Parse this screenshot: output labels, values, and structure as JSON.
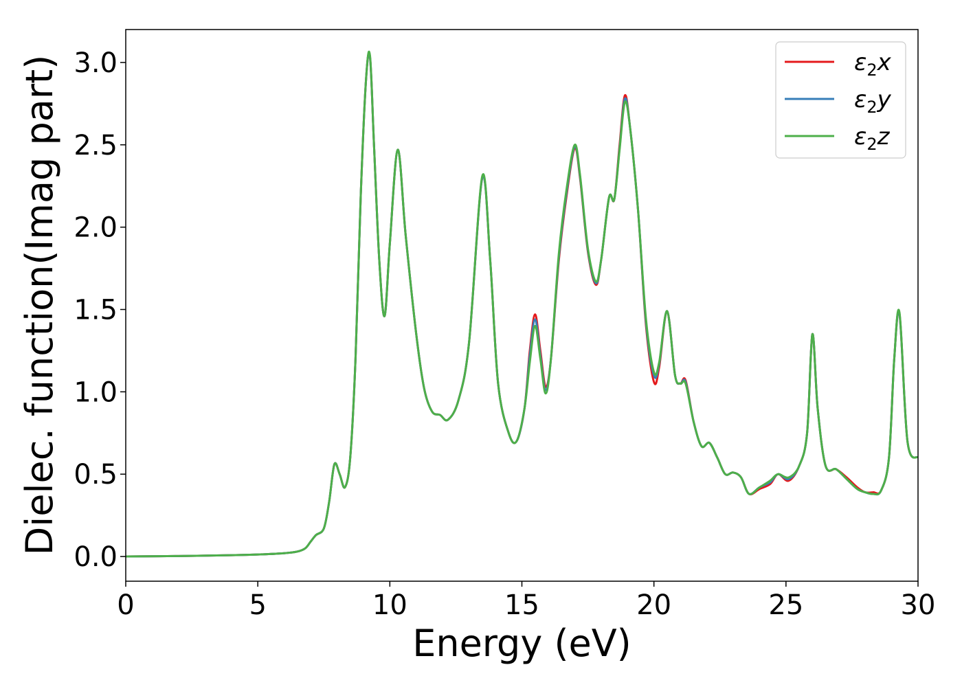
{
  "chart_data": {
    "type": "line",
    "title": "",
    "xlabel": "Energy (eV)",
    "ylabel": "Dielec. function(Imag part)",
    "xlim": [
      0,
      30
    ],
    "ylim": [
      -0.15,
      3.2
    ],
    "xticks": [
      0,
      5,
      10,
      15,
      20,
      25,
      30
    ],
    "xtick_labels": [
      "0",
      "5",
      "10",
      "15",
      "20",
      "25",
      "30"
    ],
    "yticks": [
      0.0,
      0.5,
      1.0,
      1.5,
      2.0,
      2.5,
      3.0
    ],
    "ytick_labels": [
      "0.0",
      "0.5",
      "1.0",
      "1.5",
      "2.0",
      "2.5",
      "3.0"
    ],
    "grid": false,
    "legend_position": "top-right",
    "series": [
      {
        "name": "ε₂x",
        "legend": {
          "base": "ε",
          "sub": "2",
          "var": "x"
        },
        "color": "#e41a1c",
        "x": [
          0,
          2,
          4,
          5,
          6,
          6.5,
          6.8,
          7.0,
          7.2,
          7.5,
          7.7,
          7.9,
          8.1,
          8.3,
          8.5,
          8.7,
          8.9,
          9.1,
          9.25,
          9.4,
          9.6,
          9.8,
          10.0,
          10.3,
          10.6,
          11.0,
          11.3,
          11.6,
          11.9,
          12.2,
          12.6,
          13.0,
          13.5,
          13.8,
          14.1,
          14.5,
          14.8,
          15.1,
          15.3,
          15.5,
          15.7,
          15.9,
          16.1,
          16.4,
          16.7,
          17.0,
          17.2,
          17.5,
          17.8,
          18.0,
          18.3,
          18.5,
          18.7,
          18.9,
          19.1,
          19.4,
          19.7,
          20.0,
          20.2,
          20.5,
          20.8,
          21.0,
          21.2,
          21.5,
          21.8,
          22.1,
          22.4,
          22.7,
          23.0,
          23.3,
          23.6,
          24.0,
          24.4,
          24.7,
          25.1,
          25.5,
          25.8,
          26.0,
          26.2,
          26.5,
          26.9,
          27.3,
          27.7,
          28.0,
          28.3,
          28.6,
          28.9,
          29.1,
          29.3,
          29.6,
          30.0
        ],
        "y": [
          0.0,
          0.003,
          0.008,
          0.012,
          0.02,
          0.03,
          0.05,
          0.09,
          0.13,
          0.17,
          0.33,
          0.56,
          0.5,
          0.42,
          0.6,
          1.2,
          2.2,
          2.9,
          3.03,
          2.5,
          1.8,
          1.46,
          1.9,
          2.47,
          1.95,
          1.35,
          1.02,
          0.88,
          0.86,
          0.83,
          0.95,
          1.3,
          2.3,
          1.8,
          1.05,
          0.75,
          0.7,
          0.9,
          1.25,
          1.47,
          1.25,
          1.03,
          1.2,
          1.8,
          2.2,
          2.48,
          2.3,
          1.85,
          1.65,
          1.8,
          2.18,
          2.17,
          2.5,
          2.8,
          2.6,
          2.1,
          1.4,
          1.06,
          1.15,
          1.49,
          1.1,
          1.05,
          1.07,
          0.82,
          0.67,
          0.69,
          0.6,
          0.5,
          0.51,
          0.48,
          0.38,
          0.41,
          0.44,
          0.5,
          0.46,
          0.55,
          0.75,
          1.35,
          0.9,
          0.55,
          0.53,
          0.48,
          0.42,
          0.39,
          0.39,
          0.4,
          0.6,
          1.2,
          1.47,
          0.7,
          0.6
        ]
      },
      {
        "name": "ε₂y",
        "legend": {
          "base": "ε",
          "sub": "2",
          "var": "y"
        },
        "color": "#377eb8",
        "x": [
          0,
          2,
          4,
          5,
          6,
          6.5,
          6.8,
          7.0,
          7.2,
          7.5,
          7.7,
          7.9,
          8.1,
          8.3,
          8.5,
          8.7,
          8.9,
          9.1,
          9.25,
          9.4,
          9.6,
          9.8,
          10.0,
          10.3,
          10.6,
          11.0,
          11.3,
          11.6,
          11.9,
          12.2,
          12.6,
          13.0,
          13.5,
          13.8,
          14.1,
          14.5,
          14.8,
          15.1,
          15.3,
          15.5,
          15.7,
          15.9,
          16.1,
          16.4,
          16.7,
          17.0,
          17.2,
          17.5,
          17.8,
          18.0,
          18.3,
          18.5,
          18.7,
          18.9,
          19.1,
          19.4,
          19.7,
          20.0,
          20.2,
          20.5,
          20.8,
          21.0,
          21.2,
          21.5,
          21.8,
          22.1,
          22.4,
          22.7,
          23.0,
          23.3,
          23.6,
          24.0,
          24.4,
          24.7,
          25.1,
          25.5,
          25.8,
          26.0,
          26.2,
          26.5,
          26.9,
          27.3,
          27.7,
          28.0,
          28.3,
          28.6,
          28.9,
          29.1,
          29.3,
          29.6,
          30.0
        ],
        "y": [
          0.0,
          0.003,
          0.008,
          0.012,
          0.02,
          0.03,
          0.05,
          0.09,
          0.13,
          0.17,
          0.33,
          0.56,
          0.5,
          0.42,
          0.6,
          1.2,
          2.2,
          2.9,
          3.03,
          2.5,
          1.8,
          1.46,
          1.9,
          2.47,
          1.95,
          1.35,
          1.02,
          0.88,
          0.86,
          0.83,
          0.95,
          1.3,
          2.3,
          1.8,
          1.05,
          0.75,
          0.7,
          0.9,
          1.22,
          1.44,
          1.22,
          1.01,
          1.2,
          1.82,
          2.22,
          2.49,
          2.31,
          1.86,
          1.66,
          1.8,
          2.18,
          2.17,
          2.48,
          2.78,
          2.6,
          2.1,
          1.42,
          1.1,
          1.17,
          1.49,
          1.1,
          1.05,
          1.06,
          0.82,
          0.67,
          0.69,
          0.6,
          0.5,
          0.51,
          0.48,
          0.38,
          0.42,
          0.45,
          0.5,
          0.47,
          0.55,
          0.75,
          1.35,
          0.9,
          0.55,
          0.53,
          0.47,
          0.41,
          0.39,
          0.38,
          0.4,
          0.6,
          1.2,
          1.47,
          0.7,
          0.6
        ]
      },
      {
        "name": "ε₂z",
        "legend": {
          "base": "ε",
          "sub": "2",
          "var": "z"
        },
        "color": "#4daf4a",
        "x": [
          0,
          2,
          4,
          5,
          6,
          6.5,
          6.8,
          7.0,
          7.2,
          7.5,
          7.7,
          7.9,
          8.1,
          8.3,
          8.5,
          8.7,
          8.9,
          9.1,
          9.25,
          9.4,
          9.6,
          9.8,
          10.0,
          10.3,
          10.6,
          11.0,
          11.3,
          11.6,
          11.9,
          12.2,
          12.6,
          13.0,
          13.5,
          13.8,
          14.1,
          14.5,
          14.8,
          15.1,
          15.3,
          15.5,
          15.7,
          15.9,
          16.1,
          16.4,
          16.7,
          17.0,
          17.2,
          17.5,
          17.8,
          18.0,
          18.3,
          18.5,
          18.7,
          18.9,
          19.1,
          19.4,
          19.7,
          20.0,
          20.2,
          20.5,
          20.8,
          21.0,
          21.2,
          21.5,
          21.8,
          22.1,
          22.4,
          22.7,
          23.0,
          23.3,
          23.6,
          24.0,
          24.4,
          24.7,
          25.1,
          25.5,
          25.8,
          26.0,
          26.2,
          26.5,
          26.9,
          27.3,
          27.7,
          28.0,
          28.3,
          28.6,
          28.9,
          29.1,
          29.3,
          29.6,
          30.0
        ],
        "y": [
          0.0,
          0.003,
          0.008,
          0.012,
          0.02,
          0.03,
          0.05,
          0.09,
          0.13,
          0.17,
          0.33,
          0.56,
          0.5,
          0.42,
          0.6,
          1.2,
          2.2,
          2.9,
          3.04,
          2.5,
          1.8,
          1.46,
          1.9,
          2.47,
          1.95,
          1.35,
          1.02,
          0.88,
          0.86,
          0.83,
          0.95,
          1.3,
          2.31,
          1.8,
          1.05,
          0.75,
          0.7,
          0.9,
          1.18,
          1.4,
          1.2,
          0.99,
          1.2,
          1.84,
          2.24,
          2.5,
          2.32,
          1.87,
          1.67,
          1.8,
          2.18,
          2.17,
          2.47,
          2.76,
          2.6,
          2.1,
          1.44,
          1.12,
          1.18,
          1.49,
          1.1,
          1.05,
          1.05,
          0.82,
          0.67,
          0.69,
          0.6,
          0.5,
          0.51,
          0.48,
          0.38,
          0.42,
          0.46,
          0.5,
          0.48,
          0.55,
          0.75,
          1.35,
          0.9,
          0.55,
          0.53,
          0.47,
          0.41,
          0.39,
          0.38,
          0.4,
          0.6,
          1.2,
          1.48,
          0.7,
          0.6
        ]
      }
    ]
  }
}
